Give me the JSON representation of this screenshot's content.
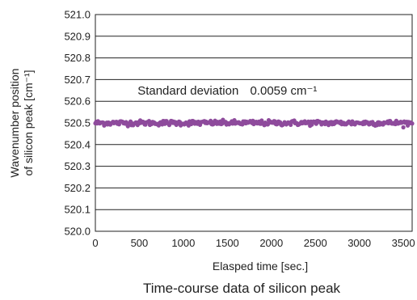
{
  "chart_data": {
    "type": "scatter",
    "caption": "Time-course data of silicon peak",
    "xlabel": "Elasped time [sec.]",
    "ylabel_line1": "Wavenumber position",
    "ylabel_line2": "of silicon peak [cm⁻¹]",
    "xlim": [
      0,
      3600
    ],
    "ylim": [
      520.0,
      521.0
    ],
    "xticks": [
      0,
      500,
      1000,
      1500,
      2000,
      2500,
      3000,
      3500
    ],
    "yticks": [
      "520.0",
      "520.1",
      "520.2",
      "520.3",
      "520.4",
      "520.5",
      "520.6",
      "520.7",
      "520.8",
      "520.9",
      "521.0"
    ],
    "grid": "horizontal",
    "annotation": {
      "label": "Standard deviation",
      "value": "0.0059 cm⁻¹",
      "x": 1500,
      "y": 520.65
    },
    "series": [
      {
        "color": "#8e4b9c",
        "mean": 520.5,
        "std": 0.0059,
        "interval_sec": 10,
        "x_start": 0,
        "x_end": 3600
      }
    ]
  }
}
